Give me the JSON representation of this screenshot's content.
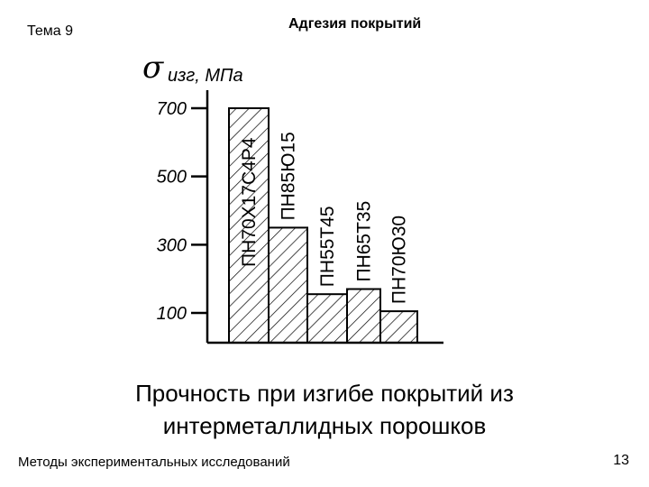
{
  "header": {
    "topic": "Тема 9",
    "title": "Адгезия покрытий"
  },
  "caption": {
    "line1": "Прочность при изгибе покрытий из",
    "line2": "интерметаллидных порошков"
  },
  "footer": {
    "left": "Методы экспериментальных исследований",
    "page_number": "13"
  },
  "chart_data": {
    "type": "bar",
    "ylabel_symbol": "σ",
    "ylabel_text": "изг, МПа",
    "yticks": [
      100,
      300,
      500,
      700
    ],
    "ylim": [
      0,
      720
    ],
    "categories": [
      "ПН70Х17С4Р4",
      "ПН85Ю15",
      "ПН55Т45",
      "ПН65Т35",
      "ПН70Ю30"
    ],
    "values": [
      700,
      350,
      155,
      170,
      105
    ],
    "fill": "diagonal hatch",
    "grid": false
  }
}
